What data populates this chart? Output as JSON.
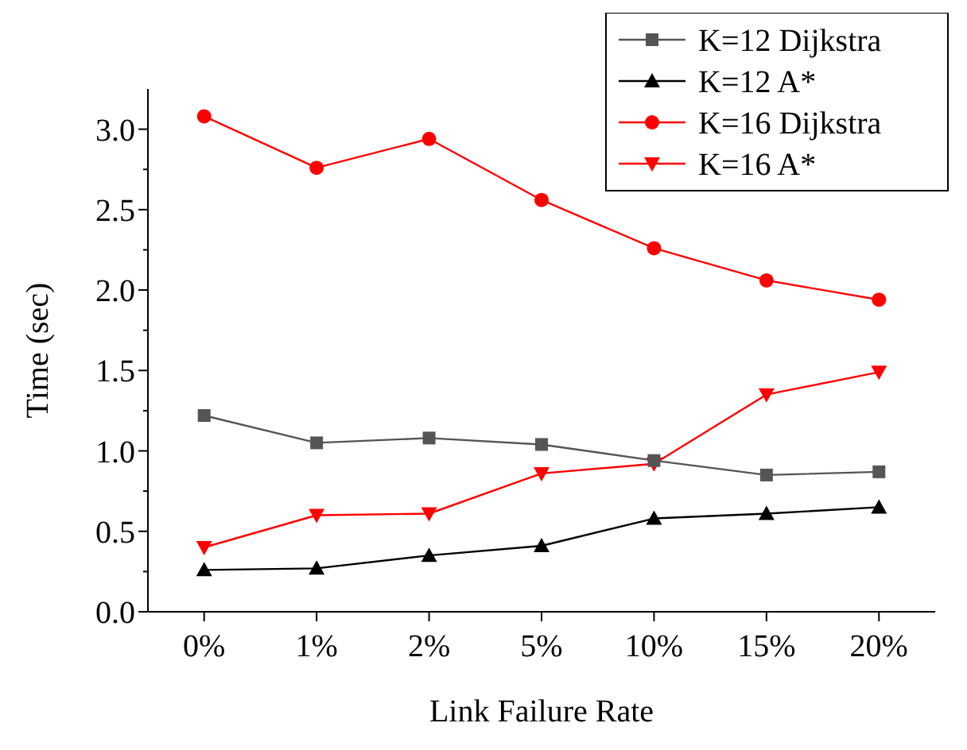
{
  "chart_data": {
    "type": "line",
    "xlabel": "Link Failure Rate",
    "ylabel": "Time (sec)",
    "categories": [
      "0%",
      "1%",
      "2%",
      "5%",
      "10%",
      "15%",
      "20%"
    ],
    "ylim": [
      0,
      3.25
    ],
    "yticks": [
      {
        "value": 0,
        "label": "0.0"
      },
      0.5,
      {
        "value": 1,
        "label": "1.0"
      },
      1.5,
      {
        "value": 2,
        "label": "2.0"
      },
      2.5,
      {
        "value": 3,
        "label": "3.0"
      }
    ],
    "legend": "top right",
    "grid": false,
    "series": [
      {
        "name": "K=12 Dijkstra",
        "color": "#555555",
        "marker": "square",
        "values": [
          1.22,
          1.05,
          1.08,
          1.04,
          0.94,
          0.85,
          0.87
        ]
      },
      {
        "name": "K=12 A*",
        "color": "#000000",
        "marker": "triangle",
        "values": [
          0.26,
          0.27,
          0.35,
          0.41,
          0.58,
          0.61,
          0.65
        ]
      },
      {
        "name": "K=16 Dijkstra",
        "color": "#ff0000",
        "marker": "circle",
        "values": [
          3.08,
          2.76,
          2.94,
          2.56,
          2.26,
          2.06,
          1.94
        ]
      },
      {
        "name": "K=16 A*",
        "color": "#ff0000",
        "marker": "triangle-down",
        "values": [
          0.4,
          0.6,
          0.61,
          0.86,
          0.92,
          1.35,
          1.49
        ]
      }
    ]
  }
}
